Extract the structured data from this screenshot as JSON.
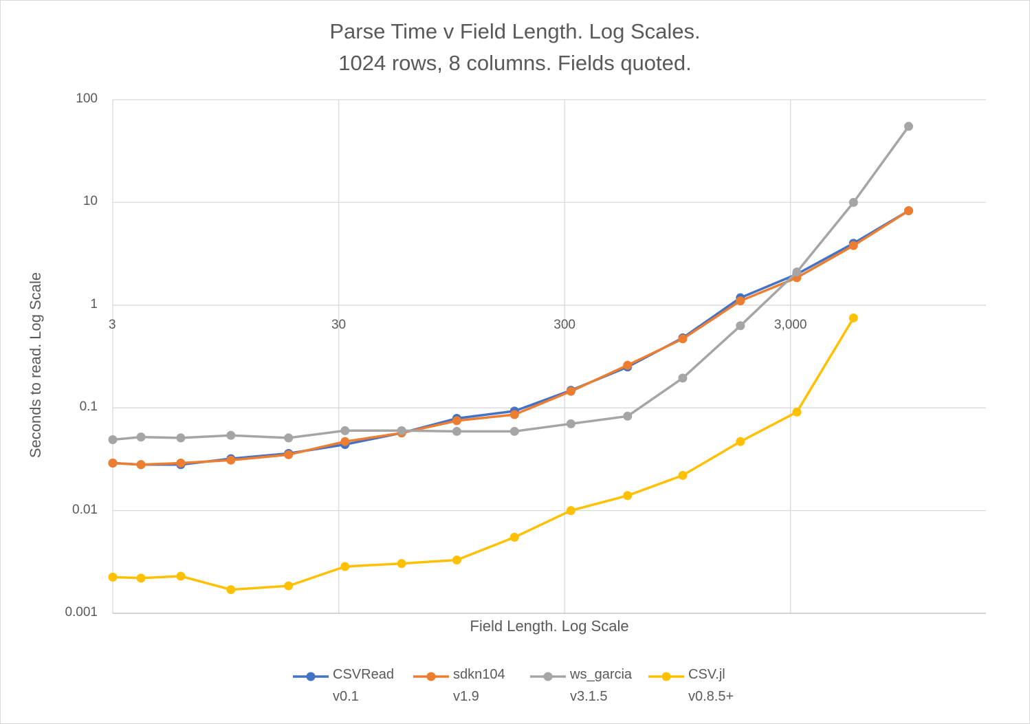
{
  "chart_data": {
    "type": "line",
    "title": "Parse Time v Field Length.  Log Scales.",
    "subtitle": "1024 rows, 8 columns. Fields quoted.",
    "xlabel": "Field Length. Log Scale",
    "ylabel": "Seconds to read. Log Scale",
    "xscale": "log",
    "yscale": "log",
    "xlim": [
      3,
      22000
    ],
    "ylim": [
      0.001,
      100
    ],
    "x_ticks": [
      3,
      30,
      300,
      3000
    ],
    "x_tick_labels": [
      "3",
      "30",
      "300",
      "3,000"
    ],
    "y_ticks": [
      100,
      10,
      1,
      0.1,
      0.01,
      0.001
    ],
    "y_tick_labels": [
      "100",
      "10",
      "1",
      "0.1",
      "0.01",
      "0.001"
    ],
    "grid": true,
    "legend_position": "bottom",
    "x": [
      3,
      4,
      6,
      10,
      18,
      32,
      57,
      100,
      180,
      320,
      570,
      1000,
      1800,
      3200,
      5700,
      10000,
      18000
    ],
    "series": [
      {
        "name": "CSVRead",
        "version": "v0.1",
        "color": "#4472c4",
        "values": [
          0.029,
          0.028,
          0.028,
          0.032,
          0.036,
          0.044,
          0.057,
          0.079,
          0.093,
          0.148,
          0.25,
          0.48,
          1.18,
          2.0,
          4.0,
          8.3,
          null
        ]
      },
      {
        "name": "sdkn104",
        "version": "v1.9",
        "color": "#ed7d31",
        "values": [
          0.029,
          0.028,
          0.029,
          0.031,
          0.035,
          0.047,
          0.057,
          0.075,
          0.086,
          0.145,
          0.26,
          0.47,
          1.1,
          1.85,
          3.8,
          8.3,
          null
        ]
      },
      {
        "name": "ws_garcia",
        "version": "v3.1.5",
        "color": "#a5a5a5",
        "values": [
          0.049,
          0.052,
          0.051,
          0.054,
          0.051,
          0.06,
          0.06,
          0.059,
          0.059,
          0.07,
          0.083,
          0.195,
          0.63,
          2.1,
          10.0,
          55.0,
          null
        ]
      },
      {
        "name": "CSV.jl",
        "version": "v0.8.5+",
        "color": "#ffc000",
        "values": [
          0.00225,
          0.0022,
          0.0023,
          0.0017,
          0.00185,
          0.00285,
          0.00305,
          0.0033,
          0.0055,
          0.01,
          0.014,
          0.022,
          0.047,
          0.091,
          0.75,
          null,
          null
        ]
      }
    ]
  }
}
